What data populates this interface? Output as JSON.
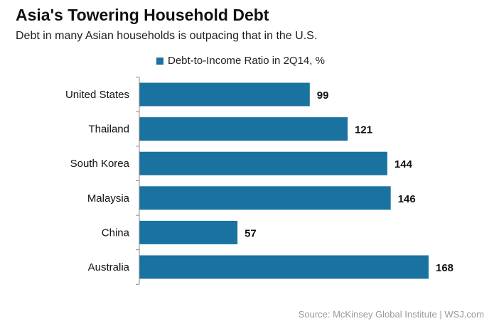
{
  "header": {
    "title": "Asia's Towering Household Debt",
    "subtitle": "Debt in many Asian households is outpacing that in the U.S."
  },
  "footer": {
    "source": "Source: McKinsey Global Institute  |  WSJ.com"
  },
  "colors": {
    "bar": "#1a72a0",
    "axis": "#888888",
    "text": "#111111"
  },
  "chart_data": {
    "type": "bar",
    "orientation": "horizontal",
    "title": "Asia's Towering Household Debt",
    "subtitle": "Debt in many Asian households is outpacing that in the U.S.",
    "categories": [
      "United States",
      "Thailand",
      "South Korea",
      "Malaysia",
      "China",
      "Australia"
    ],
    "series": [
      {
        "name": "Debt-to-Income Ratio in 2Q14, %",
        "values": [
          99,
          121,
          144,
          146,
          57,
          168
        ]
      }
    ],
    "data_labels": [
      "99",
      "121",
      "144",
      "146",
      "57",
      "168"
    ],
    "xlim": [
      0,
      168
    ],
    "grid": false,
    "legend_position": "top-center"
  }
}
